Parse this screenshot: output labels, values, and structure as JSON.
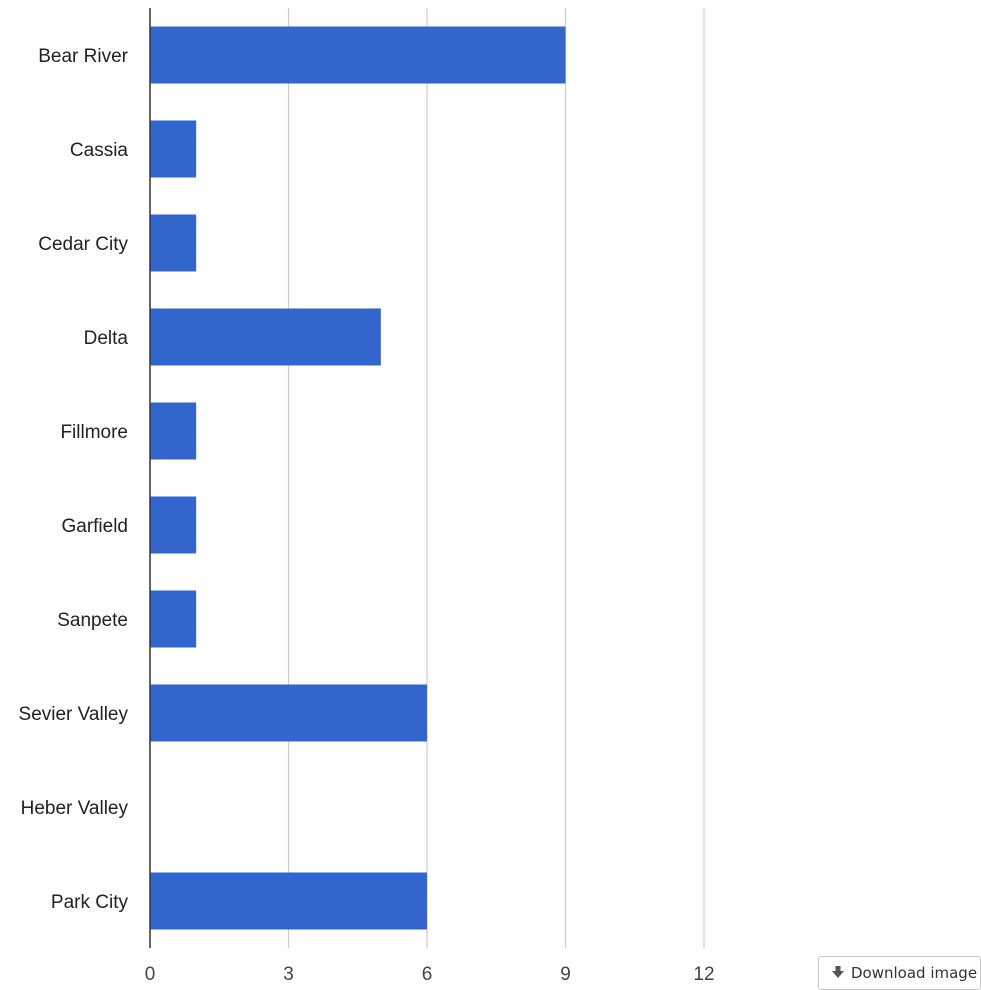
{
  "chart_data": {
    "type": "bar",
    "orientation": "horizontal",
    "categories": [
      "Bear River",
      "Cassia",
      "Cedar City",
      "Delta",
      "Fillmore",
      "Garfield",
      "Sanpete",
      "Sevier Valley",
      "Heber Valley",
      "Park City"
    ],
    "values": [
      9,
      1,
      1,
      5,
      1,
      1,
      1,
      6,
      0,
      6
    ],
    "xticks": [
      "0",
      "3",
      "6",
      "9",
      "12"
    ],
    "xlim": [
      0,
      12
    ],
    "grid": true,
    "legend": "none",
    "bar_color": "#3366cc",
    "title": "",
    "xlabel": "",
    "ylabel": ""
  },
  "download": {
    "label": "Download image",
    "icon": "download-arrow-icon"
  }
}
